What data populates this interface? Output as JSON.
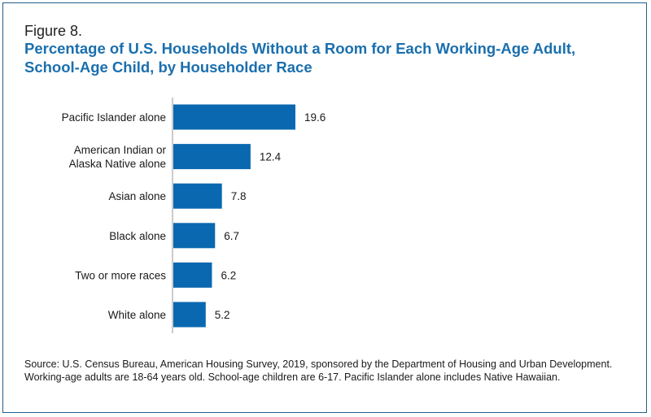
{
  "figure_label": "Figure 8.",
  "title": "Percentage of U.S. Households Without a Room for Each Working-Age Adult, School-Age Child, by Householder Race",
  "source": "Source: U.S. Census Bureau, American Housing Survey, 2019, sponsored by the Department of Housing and Urban Development. Working-age adults are 18-64 years old. School-age children are 6-17. Pacific Islander alone includes Native Hawaiian.",
  "colors": {
    "bar": "#0a68b0",
    "title": "#1a6fae",
    "border": "#1f5f8f",
    "axis": "#999999"
  },
  "chart_data": {
    "type": "bar",
    "orientation": "horizontal",
    "title": "Percentage of U.S. Households Without a Room for Each Working-Age Adult, School-Age Child, by Householder Race",
    "categories": [
      [
        "Pacific Islander alone"
      ],
      [
        "American Indian or",
        "Alaska Native alone"
      ],
      [
        "Asian alone"
      ],
      [
        "Black alone"
      ],
      [
        "Two or more races"
      ],
      [
        "White alone"
      ]
    ],
    "values": [
      19.6,
      12.4,
      7.8,
      6.7,
      6.2,
      5.2
    ],
    "value_labels": [
      "19.6",
      "12.4",
      "7.8",
      "6.7",
      "6.2",
      "5.2"
    ],
    "xlim": [
      0,
      19.6
    ],
    "grid": false,
    "axis_labels_shown": false
  }
}
